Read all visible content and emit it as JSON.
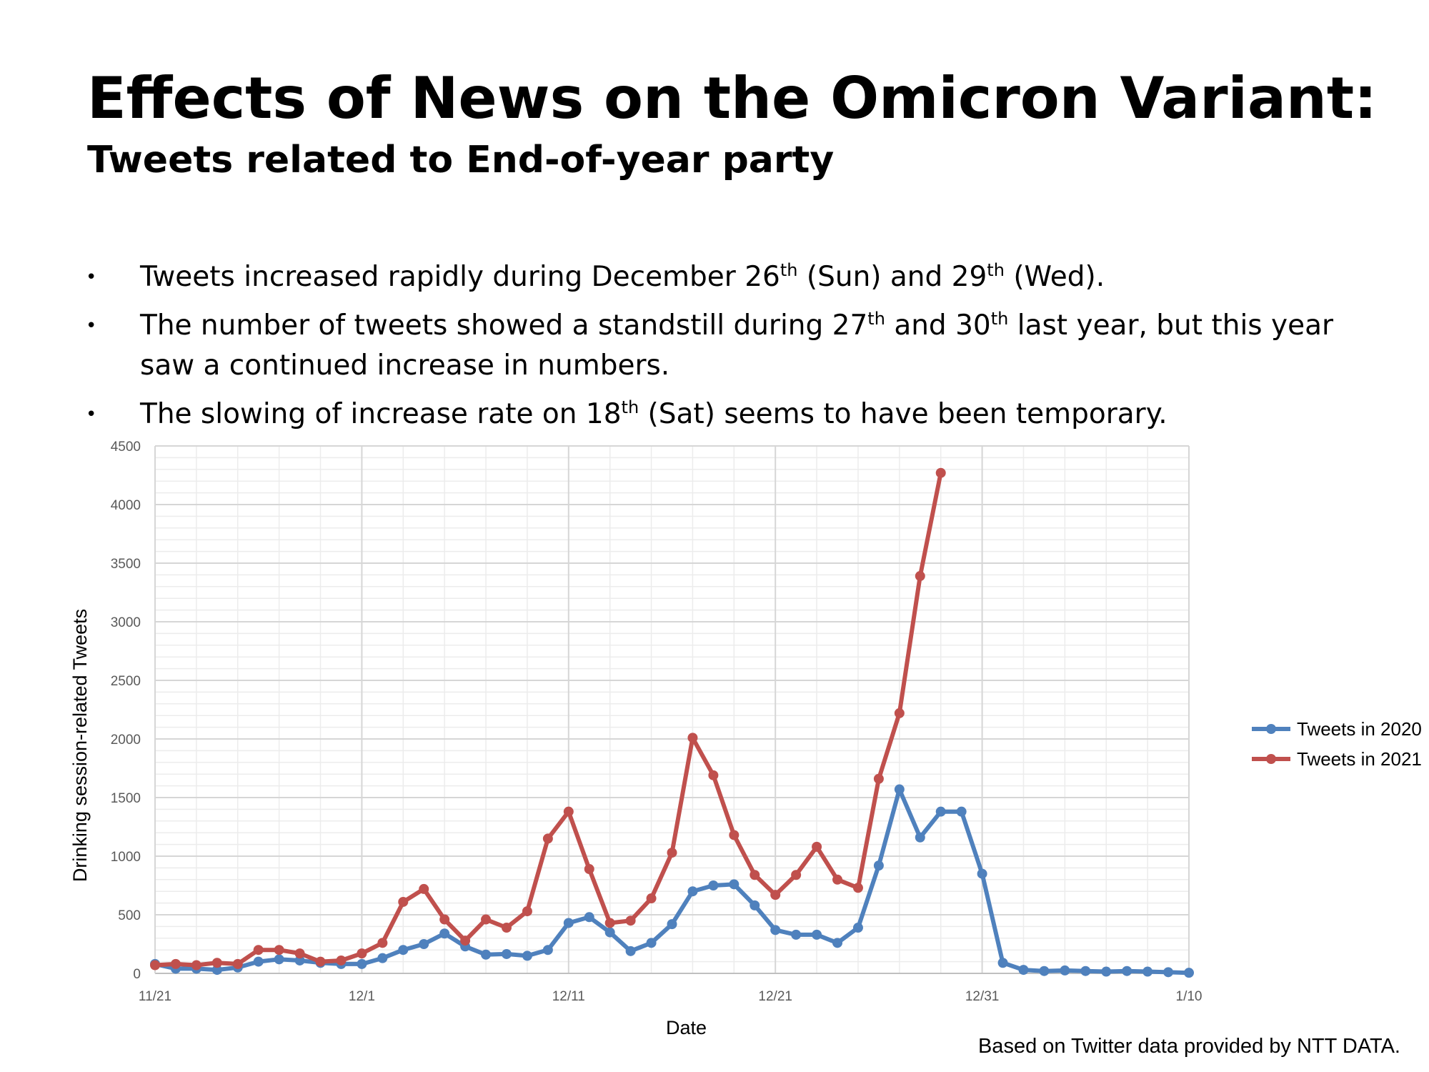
{
  "header": {
    "title": "Effects of News on the Omicron Variant:",
    "subtitle": "Tweets related to End-of-year party"
  },
  "bullets": [
    {
      "parts": [
        {
          "t": "Tweets increased rapidly during December 26"
        },
        {
          "t": "th",
          "sup": true
        },
        {
          "t": " (Sun) and 29"
        },
        {
          "t": "th",
          "sup": true
        },
        {
          "t": " (Wed)."
        }
      ]
    },
    {
      "parts": [
        {
          "t": "The number of tweets showed a standstill during 27"
        },
        {
          "t": "th",
          "sup": true
        },
        {
          "t": " and 30"
        },
        {
          "t": "th",
          "sup": true
        },
        {
          "t": " last year, but this year saw a continued increase in numbers."
        }
      ]
    },
    {
      "parts": [
        {
          "t": "The slowing of increase rate on 18"
        },
        {
          "t": "th",
          "sup": true
        },
        {
          "t": " (Sat) seems to have been temporary."
        }
      ]
    }
  ],
  "bullet_symbol": "•",
  "footer": {
    "source": "Based on Twitter data provided by NTT DATA."
  },
  "chart_data": {
    "type": "line",
    "xlabel": "Date",
    "ylabel": "Drinking session-related Tweets",
    "ylim": [
      0,
      4500
    ],
    "yticks": [
      0,
      500,
      1000,
      1500,
      2000,
      2500,
      3000,
      3500,
      4000,
      4500
    ],
    "xlim": [
      "11/21",
      "1/10"
    ],
    "xticks": [
      "11/21",
      "12/1",
      "12/11",
      "12/21",
      "12/31",
      "1/10"
    ],
    "grid": true,
    "legend_position": "right",
    "series": [
      {
        "name": "Tweets in 2020",
        "color": "#4f81bd",
        "start": "11/21",
        "values": [
          80,
          40,
          40,
          30,
          50,
          100,
          120,
          110,
          90,
          80,
          80,
          130,
          200,
          250,
          340,
          230,
          160,
          165,
          150,
          200,
          430,
          480,
          350,
          190,
          260,
          420,
          700,
          750,
          760,
          580,
          370,
          330,
          330,
          260,
          390,
          920,
          1570,
          1160,
          1380,
          1380,
          850,
          90,
          30,
          20,
          25,
          20,
          15,
          20,
          15,
          10,
          5
        ]
      },
      {
        "name": "Tweets in 2021",
        "color": "#c0504d",
        "start": "11/21",
        "values": [
          70,
          80,
          70,
          90,
          80,
          200,
          200,
          170,
          100,
          110,
          170,
          260,
          610,
          720,
          460,
          280,
          460,
          390,
          530,
          1150,
          1380,
          890,
          430,
          450,
          640,
          1030,
          2010,
          1690,
          1180,
          840,
          670,
          840,
          1080,
          800,
          730,
          1660,
          2220,
          3390,
          4270
        ]
      }
    ]
  }
}
